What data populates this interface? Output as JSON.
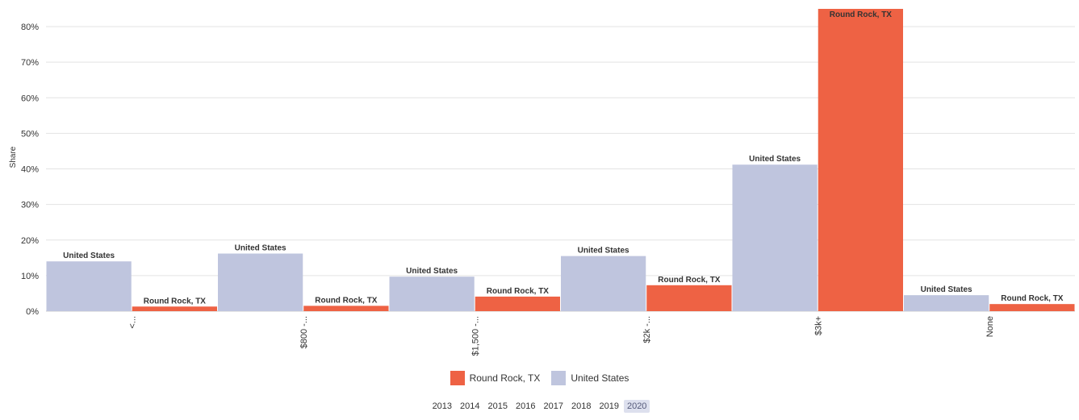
{
  "chart_data": {
    "type": "bar",
    "ylabel": "Share",
    "ylim": [
      0,
      85
    ],
    "yticks": [
      "0%",
      "10%",
      "20%",
      "30%",
      "40%",
      "50%",
      "60%",
      "70%",
      "80%"
    ],
    "categories": [
      "<...",
      "$800 -...",
      "$1,500 -...",
      "$2k -...",
      "$3k+",
      "None"
    ],
    "series": [
      {
        "name": "United States",
        "color": "#bfc5de",
        "values": [
          14.0,
          16.2,
          9.7,
          15.5,
          41.2,
          4.5
        ]
      },
      {
        "name": "Round Rock, TX",
        "color": "#ee6244",
        "values": [
          1.3,
          1.5,
          4.1,
          7.3,
          85.0,
          2.0
        ]
      }
    ],
    "grid": true
  },
  "legend": [
    {
      "label": "Round Rock, TX",
      "color": "#ee6244"
    },
    {
      "label": "United States",
      "color": "#bfc5de"
    }
  ],
  "years": [
    "2013",
    "2014",
    "2015",
    "2016",
    "2017",
    "2018",
    "2019",
    "2020"
  ],
  "selected_year": "2020"
}
